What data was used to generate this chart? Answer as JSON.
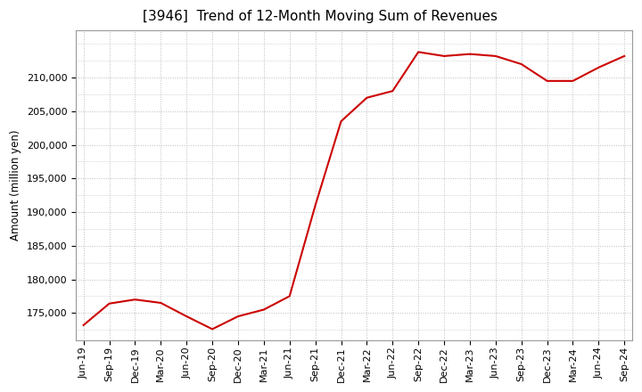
{
  "title": "[3946]  Trend of 12-Month Moving Sum of Revenues",
  "ylabel": "Amount (million yen)",
  "line_color": "#cc0000",
  "background_color": "#ffffff",
  "grid_color": "#bbbbbb",
  "x_labels": [
    "Jun-19",
    "Sep-19",
    "Dec-19",
    "Mar-20",
    "Jun-20",
    "Sep-20",
    "Dec-20",
    "Mar-21",
    "Jun-21",
    "Sep-21",
    "Dec-21",
    "Mar-22",
    "Jun-22",
    "Sep-22",
    "Dec-22",
    "Mar-23",
    "Jun-23",
    "Sep-23",
    "Dec-23",
    "Mar-24",
    "Jun-24",
    "Sep-24"
  ],
  "values": [
    173200,
    176400,
    177000,
    176500,
    174500,
    172600,
    174500,
    175500,
    177500,
    191000,
    203500,
    207000,
    208000,
    213800,
    213200,
    213500,
    213200,
    212000,
    209500,
    209500,
    211500,
    213200
  ],
  "ylim_min": 171000,
  "ylim_max": 217000,
  "yticks": [
    175000,
    180000,
    185000,
    190000,
    195000,
    200000,
    205000,
    210000
  ],
  "title_fontsize": 11,
  "tick_fontsize": 8,
  "ylabel_fontsize": 8.5
}
